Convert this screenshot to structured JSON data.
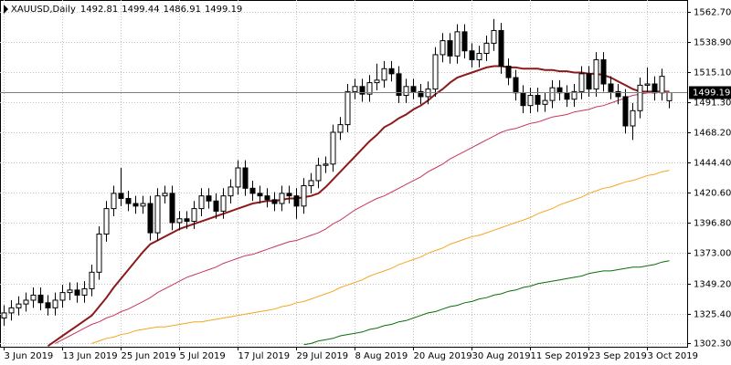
{
  "chart_data": {
    "type": "candlestick",
    "title": "XAUUSD,Daily",
    "categories": [
      "3 Jun 2019",
      null,
      null,
      null,
      null,
      null,
      null,
      null,
      "13 Jun 2019",
      null,
      null,
      null,
      null,
      null,
      null,
      null,
      "25 Jun 2019",
      null,
      null,
      null,
      null,
      null,
      null,
      null,
      "5 Jul 2019",
      null,
      null,
      null,
      null,
      null,
      null,
      null,
      "17 Jul 2019",
      null,
      null,
      null,
      null,
      null,
      null,
      null,
      "29 Jul 2019",
      null,
      null,
      null,
      null,
      null,
      null,
      null,
      "8 Aug 2019",
      null,
      null,
      null,
      null,
      null,
      null,
      null,
      "20 Aug 2019",
      null,
      null,
      null,
      null,
      null,
      null,
      null,
      "30 Aug 2019",
      null,
      null,
      null,
      null,
      null,
      null,
      null,
      "11 Sep 2019",
      null,
      null,
      null,
      null,
      null,
      null,
      null,
      "23 Sep 2019",
      null,
      null,
      null,
      null,
      null,
      null,
      null,
      "3 Oct 2019",
      null,
      null,
      null
    ],
    "open": [
      1322,
      1326,
      1330,
      1333,
      1336,
      1340,
      1334,
      1330,
      1336,
      1342,
      1344,
      1340,
      1345,
      1358,
      1388,
      1408,
      1420,
      1416,
      1412,
      1410,
      1412,
      1389,
      1418,
      1420,
      1397,
      1400,
      1398,
      1408,
      1418,
      1414,
      1406,
      1418,
      1425,
      1440,
      1424,
      1420,
      1418,
      1415,
      1412,
      1420,
      1418,
      1410,
      1426,
      1430,
      1442,
      1443,
      1468,
      1474,
      1500,
      1504,
      1498,
      1507,
      1509,
      1518,
      1514,
      1497,
      1504,
      1500,
      1496,
      1502,
      1529,
      1540,
      1528,
      1547,
      1532,
      1525,
      1530,
      1538,
      1548,
      1520,
      1511,
      1499,
      1489,
      1497,
      1490,
      1493,
      1503,
      1499,
      1494,
      1500,
      1514,
      1502,
      1525,
      1506,
      1500,
      1496,
      1473,
      1485,
      1505,
      1506,
      1499,
      1492.81
    ],
    "high": [
      1332,
      1336,
      1339,
      1342,
      1346,
      1346,
      1340,
      1342,
      1348,
      1350,
      1350,
      1351,
      1364,
      1394,
      1414,
      1426,
      1440,
      1422,
      1418,
      1418,
      1418,
      1424,
      1426,
      1426,
      1406,
      1406,
      1414,
      1424,
      1424,
      1420,
      1424,
      1431,
      1446,
      1446,
      1430,
      1426,
      1424,
      1421,
      1426,
      1426,
      1424,
      1432,
      1436,
      1448,
      1449,
      1474,
      1480,
      1506,
      1510,
      1510,
      1513,
      1522,
      1524,
      1524,
      1520,
      1510,
      1510,
      1506,
      1508,
      1535,
      1546,
      1546,
      1553,
      1553,
      1538,
      1536,
      1544,
      1557,
      1554,
      1526,
      1517,
      1505,
      1503,
      1503,
      1499,
      1509,
      1509,
      1505,
      1506,
      1520,
      1520,
      1531,
      1531,
      1512,
      1506,
      1502,
      1491,
      1511,
      1519,
      1512,
      1518,
      1499.44
    ],
    "low": [
      1316,
      1320,
      1324,
      1327,
      1330,
      1328,
      1324,
      1324,
      1330,
      1336,
      1334,
      1334,
      1339,
      1352,
      1382,
      1402,
      1410,
      1406,
      1404,
      1404,
      1383,
      1383,
      1412,
      1391,
      1391,
      1392,
      1392,
      1402,
      1408,
      1400,
      1400,
      1412,
      1419,
      1418,
      1414,
      1412,
      1409,
      1406,
      1406,
      1412,
      1400,
      1404,
      1420,
      1424,
      1436,
      1437,
      1462,
      1468,
      1494,
      1492,
      1492,
      1501,
      1503,
      1508,
      1491,
      1491,
      1494,
      1490,
      1490,
      1496,
      1523,
      1522,
      1522,
      1526,
      1519,
      1519,
      1524,
      1532,
      1514,
      1505,
      1493,
      1483,
      1483,
      1484,
      1484,
      1487,
      1493,
      1488,
      1488,
      1494,
      1496,
      1496,
      1500,
      1494,
      1490,
      1467,
      1462,
      1479,
      1499,
      1493,
      1493,
      1486.91
    ],
    "close": [
      1326,
      1330,
      1333,
      1336,
      1340,
      1334,
      1330,
      1336,
      1342,
      1344,
      1340,
      1345,
      1358,
      1388,
      1408,
      1420,
      1416,
      1412,
      1410,
      1412,
      1389,
      1418,
      1420,
      1397,
      1400,
      1398,
      1408,
      1418,
      1414,
      1406,
      1418,
      1425,
      1440,
      1424,
      1420,
      1418,
      1415,
      1412,
      1420,
      1418,
      1410,
      1426,
      1430,
      1442,
      1443,
      1468,
      1474,
      1500,
      1504,
      1498,
      1507,
      1509,
      1518,
      1514,
      1497,
      1504,
      1500,
      1496,
      1502,
      1529,
      1540,
      1528,
      1547,
      1532,
      1525,
      1530,
      1538,
      1548,
      1520,
      1511,
      1499,
      1489,
      1497,
      1490,
      1493,
      1503,
      1499,
      1494,
      1500,
      1514,
      1502,
      1525,
      1506,
      1500,
      1496,
      1473,
      1485,
      1505,
      1506,
      1499,
      1512,
      1499.19
    ],
    "series": [
      {
        "color": "#8b1a1a",
        "width": 2,
        "values": [
          null,
          null,
          null,
          null,
          null,
          null,
          1300,
          1304,
          1308,
          1312,
          1316,
          1320,
          1324,
          1331,
          1338,
          1346,
          1353,
          1360,
          1367,
          1374,
          1380,
          1383,
          1386,
          1389,
          1392,
          1394,
          1396,
          1398,
          1400,
          1402,
          1404,
          1406,
          1408,
          1410,
          1412,
          1413,
          1414,
          1414,
          1415,
          1416,
          1416,
          1417,
          1418,
          1420,
          1425,
          1431,
          1437,
          1443,
          1449,
          1455,
          1461,
          1466,
          1472,
          1475,
          1479,
          1482,
          1486,
          1489,
          1493,
          1498,
          1502,
          1507,
          1511,
          1513,
          1515,
          1517,
          1519,
          1520,
          1520,
          1519,
          1519,
          1518,
          1518,
          1518,
          1517,
          1517,
          1516,
          1516,
          1515,
          1515,
          1514,
          1514,
          1513,
          1511,
          1508,
          1505,
          1502,
          1500,
          1500,
          1500,
          1500,
          1500
        ]
      },
      {
        "color": "#c8375a",
        "width": 1,
        "values": [
          null,
          null,
          null,
          null,
          null,
          null,
          null,
          1302,
          1305,
          1308,
          1311,
          1314,
          1317,
          1319,
          1322,
          1324,
          1327,
          1329,
          1332,
          1335,
          1338,
          1342,
          1345,
          1348,
          1351,
          1354,
          1356,
          1358,
          1360,
          1362,
          1365,
          1367,
          1369,
          1371,
          1372,
          1374,
          1376,
          1378,
          1380,
          1382,
          1383,
          1385,
          1387,
          1389,
          1392,
          1396,
          1399,
          1403,
          1407,
          1410,
          1413,
          1416,
          1418,
          1421,
          1424,
          1427,
          1430,
          1433,
          1437,
          1440,
          1443,
          1447,
          1450,
          1453,
          1456,
          1459,
          1462,
          1465,
          1468,
          1470,
          1471,
          1473,
          1475,
          1476,
          1478,
          1480,
          1481,
          1482,
          1484,
          1485,
          1486,
          1488,
          1489,
          1491,
          1493,
          1495,
          1497,
          1498,
          1499,
          1499,
          1500,
          1500
        ]
      },
      {
        "color": "#f5a623",
        "width": 1,
        "values": [
          null,
          null,
          null,
          null,
          null,
          null,
          null,
          null,
          null,
          null,
          null,
          null,
          1302,
          1304,
          1306,
          1307,
          1309,
          1310,
          1312,
          1313,
          1314,
          1315,
          1315,
          1316,
          1317,
          1318,
          1319,
          1319,
          1320,
          1321,
          1322,
          1323,
          1324,
          1325,
          1326,
          1327,
          1328,
          1329,
          1331,
          1332,
          1334,
          1335,
          1337,
          1339,
          1341,
          1343,
          1346,
          1348,
          1350,
          1352,
          1355,
          1357,
          1359,
          1361,
          1364,
          1366,
          1368,
          1370,
          1373,
          1375,
          1377,
          1380,
          1382,
          1384,
          1386,
          1387,
          1389,
          1391,
          1393,
          1395,
          1397,
          1399,
          1401,
          1404,
          1406,
          1408,
          1411,
          1413,
          1415,
          1417,
          1420,
          1422,
          1424,
          1425,
          1427,
          1429,
          1430,
          1432,
          1434,
          1435,
          1437,
          1438
        ]
      },
      {
        "color": "#0a6e0a",
        "width": 1,
        "values": [
          null,
          null,
          null,
          null,
          null,
          null,
          null,
          null,
          null,
          null,
          null,
          null,
          null,
          null,
          null,
          null,
          null,
          null,
          null,
          null,
          null,
          null,
          null,
          null,
          null,
          null,
          null,
          null,
          null,
          null,
          null,
          null,
          null,
          null,
          null,
          null,
          null,
          null,
          null,
          null,
          null,
          1301,
          1302,
          1304,
          1305,
          1306,
          1308,
          1309,
          1310,
          1311,
          1313,
          1314,
          1316,
          1317,
          1319,
          1320,
          1322,
          1324,
          1326,
          1327,
          1329,
          1331,
          1332,
          1334,
          1335,
          1337,
          1338,
          1340,
          1341,
          1343,
          1344,
          1346,
          1347,
          1349,
          1350,
          1351,
          1352,
          1353,
          1354,
          1355,
          1357,
          1358,
          1359,
          1359,
          1360,
          1361,
          1362,
          1362,
          1363,
          1364,
          1366,
          1367
        ]
      }
    ],
    "last_price": 1499.19,
    "ylim": [
      1299.4,
      1572
    ],
    "yticks": [
      {
        "value": 1302.3,
        "label": "1302.30"
      },
      {
        "value": 1325.4,
        "label": "1325.40"
      },
      {
        "value": 1349.2,
        "label": "1349.20"
      },
      {
        "value": 1373,
        "label": "1373.00"
      },
      {
        "value": 1396.8,
        "label": "1396.80"
      },
      {
        "value": 1420.6,
        "label": "1420.60"
      },
      {
        "value": 1444.4,
        "label": "1444.40"
      },
      {
        "value": 1468.2,
        "label": "1468.20"
      },
      {
        "value": 1491.3,
        "label": "1491.30"
      },
      {
        "value": 1515.1,
        "label": "1515.10"
      },
      {
        "value": 1538.9,
        "label": "1538.90"
      },
      {
        "value": 1562.7,
        "label": "1562.70"
      }
    ],
    "grid": true,
    "bull_color": "#ffffff",
    "bear_color": "#000000"
  }
}
